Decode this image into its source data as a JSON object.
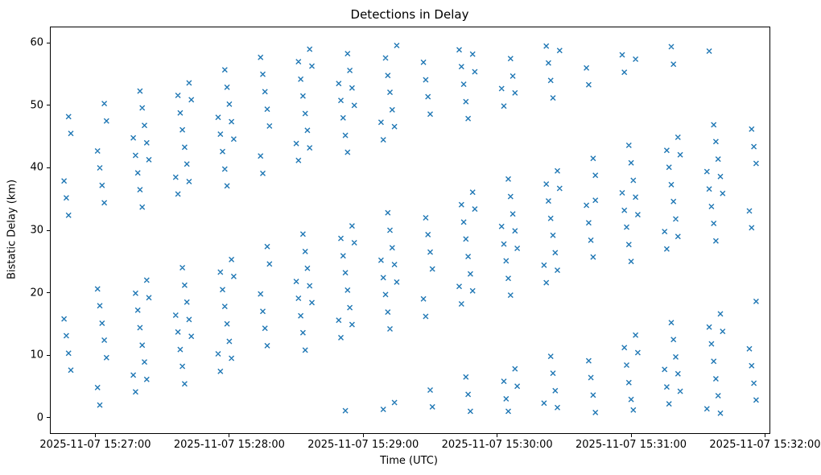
{
  "figure": {
    "background": "#ffffff"
  },
  "chart_data": {
    "type": "scatter",
    "title": "Detections in Delay",
    "xlabel": "Time (UTC)",
    "ylabel": "Bistatic Delay (km)",
    "marker": "x",
    "marker_color": "#1f77b4",
    "grid": false,
    "legend": "none",
    "x_axis": {
      "start": "2025-11-07 15:26:40",
      "end": "2025-11-07 15:32:02",
      "span_seconds": 322,
      "ticks": [
        {
          "label": "2025-11-07 15:27:00",
          "t": 20
        },
        {
          "label": "2025-11-07 15:28:00",
          "t": 80
        },
        {
          "label": "2025-11-07 15:29:00",
          "t": 140
        },
        {
          "label": "2025-11-07 15:30:00",
          "t": 200
        },
        {
          "label": "2025-11-07 15:31:00",
          "t": 260
        },
        {
          "label": "2025-11-07 15:32:00",
          "t": 320
        }
      ]
    },
    "y_axis": {
      "min": -2.5,
      "max": 62.5,
      "ticks": [
        0,
        10,
        20,
        30,
        40,
        50,
        60
      ]
    },
    "points_format": [
      "seconds_after_axis_start",
      "bistatic_delay_km"
    ],
    "points": [
      [
        79,
        37.1
      ],
      [
        152,
        14.2
      ],
      [
        225,
        51.2
      ],
      [
        298,
        28.3
      ],
      [
        60,
        5.4
      ],
      [
        133,
        42.5
      ],
      [
        206,
        19.6
      ],
      [
        279,
        56.6
      ],
      [
        41,
        33.7
      ],
      [
        114,
        10.8
      ],
      [
        187,
        47.9
      ],
      [
        260,
        25.0
      ],
      [
        22,
        2.0
      ],
      [
        95,
        39.1
      ],
      [
        168,
        16.2
      ],
      [
        241,
        53.3
      ],
      [
        314,
        30.4
      ],
      [
        76,
        7.4
      ],
      [
        149,
        44.5
      ],
      [
        222,
        21.6
      ],
      [
        295,
        58.7
      ],
      [
        57,
        35.8
      ],
      [
        130,
        12.8
      ],
      [
        203,
        49.9
      ],
      [
        276,
        27.0
      ],
      [
        38,
        4.1
      ],
      [
        111,
        41.2
      ],
      [
        184,
        18.2
      ],
      [
        257,
        55.3
      ],
      [
        8,
        32.4
      ],
      [
        81,
        9.5
      ],
      [
        154,
        46.6
      ],
      [
        227,
        23.6
      ],
      [
        300,
        0.7
      ],
      [
        62,
        37.8
      ],
      [
        135,
        14.9
      ],
      [
        208,
        52.0
      ],
      [
        281,
        29.0
      ],
      [
        43,
        6.1
      ],
      [
        116,
        43.2
      ],
      [
        189,
        20.3
      ],
      [
        262,
        57.4
      ],
      [
        24,
        34.4
      ],
      [
        97,
        11.5
      ],
      [
        170,
        48.6
      ],
      [
        243,
        25.7
      ],
      [
        316,
        2.8
      ],
      [
        78,
        39.8
      ],
      [
        151,
        16.9
      ],
      [
        224,
        54.0
      ],
      [
        297,
        31.1
      ],
      [
        59,
        8.2
      ],
      [
        132,
        45.2
      ],
      [
        205,
        22.3
      ],
      [
        278,
        59.4
      ],
      [
        40,
        36.5
      ],
      [
        113,
        13.6
      ],
      [
        186,
        50.6
      ],
      [
        259,
        27.7
      ],
      [
        21,
        4.8
      ],
      [
        94,
        41.9
      ],
      [
        167,
        19.0
      ],
      [
        240,
        56.0
      ],
      [
        313,
        33.1
      ],
      [
        75,
        10.2
      ],
      [
        148,
        47.3
      ],
      [
        221,
        24.4
      ],
      [
        294,
        1.4
      ],
      [
        56,
        38.5
      ],
      [
        129,
        15.6
      ],
      [
        202,
        52.7
      ],
      [
        275,
        29.8
      ],
      [
        37,
        6.8
      ],
      [
        110,
        43.9
      ],
      [
        183,
        21.0
      ],
      [
        256,
        58.1
      ],
      [
        7,
        35.2
      ],
      [
        80,
        12.2
      ],
      [
        153,
        49.3
      ],
      [
        226,
        26.4
      ],
      [
        299,
        3.5
      ],
      [
        61,
        40.6
      ],
      [
        134,
        17.6
      ],
      [
        207,
        54.7
      ],
      [
        280,
        31.8
      ],
      [
        42,
        8.9
      ],
      [
        115,
        46.0
      ],
      [
        188,
        23.0
      ],
      [
        261,
        1.2
      ],
      [
        23,
        37.2
      ],
      [
        96,
        14.3
      ],
      [
        169,
        51.4
      ],
      [
        242,
        28.4
      ],
      [
        315,
        5.5
      ],
      [
        77,
        42.6
      ],
      [
        150,
        19.7
      ],
      [
        223,
        56.8
      ],
      [
        296,
        33.8
      ],
      [
        58,
        10.9
      ],
      [
        131,
        48.0
      ],
      [
        204,
        25.1
      ],
      [
        277,
        2.2
      ],
      [
        39,
        39.2
      ],
      [
        112,
        16.3
      ],
      [
        185,
        53.4
      ],
      [
        258,
        30.5
      ],
      [
        9,
        7.6
      ],
      [
        82,
        44.6
      ],
      [
        155,
        21.7
      ],
      [
        228,
        58.8
      ],
      [
        301,
        35.9
      ],
      [
        63,
        13.0
      ],
      [
        136,
        50.0
      ],
      [
        209,
        27.1
      ],
      [
        282,
        4.2
      ],
      [
        44,
        41.3
      ],
      [
        117,
        18.4
      ],
      [
        190,
        55.4
      ],
      [
        263,
        32.5
      ],
      [
        25,
        9.6
      ],
      [
        98,
        46.7
      ],
      [
        171,
        23.8
      ],
      [
        244,
        0.8
      ],
      [
        6,
        37.9
      ],
      [
        79,
        15.0
      ],
      [
        152,
        52.1
      ],
      [
        225,
        29.2
      ],
      [
        298,
        6.2
      ],
      [
        60,
        43.3
      ],
      [
        133,
        20.4
      ],
      [
        206,
        57.5
      ],
      [
        279,
        34.6
      ],
      [
        41,
        11.6
      ],
      [
        114,
        48.7
      ],
      [
        187,
        25.8
      ],
      [
        260,
        2.9
      ],
      [
        22,
        40.0
      ],
      [
        95,
        17.0
      ],
      [
        168,
        54.1
      ],
      [
        241,
        31.2
      ],
      [
        314,
        8.3
      ],
      [
        76,
        45.4
      ],
      [
        149,
        22.4
      ],
      [
        222,
        59.5
      ],
      [
        295,
        36.6
      ],
      [
        57,
        13.7
      ],
      [
        130,
        50.8
      ],
      [
        203,
        27.8
      ],
      [
        276,
        4.9
      ],
      [
        38,
        42.0
      ],
      [
        111,
        19.1
      ],
      [
        184,
        56.2
      ],
      [
        257,
        33.2
      ],
      [
        8,
        10.3
      ],
      [
        81,
        47.4
      ],
      [
        154,
        24.5
      ],
      [
        227,
        1.6
      ],
      [
        300,
        38.6
      ],
      [
        62,
        15.7
      ],
      [
        135,
        52.8
      ],
      [
        208,
        29.9
      ],
      [
        281,
        7.0
      ],
      [
        43,
        44.0
      ],
      [
        116,
        21.1
      ],
      [
        189,
        58.2
      ],
      [
        262,
        35.3
      ],
      [
        24,
        12.4
      ],
      [
        97,
        49.4
      ],
      [
        170,
        26.5
      ],
      [
        243,
        3.6
      ],
      [
        316,
        40.7
      ],
      [
        78,
        17.8
      ],
      [
        151,
        54.8
      ],
      [
        224,
        31.9
      ],
      [
        297,
        9.0
      ],
      [
        59,
        46.1
      ],
      [
        132,
        23.2
      ],
      [
        205,
        1.0
      ],
      [
        278,
        37.3
      ],
      [
        40,
        14.4
      ],
      [
        113,
        51.5
      ],
      [
        186,
        28.6
      ],
      [
        259,
        5.6
      ],
      [
        21,
        42.7
      ],
      [
        94,
        19.8
      ],
      [
        167,
        56.9
      ],
      [
        240,
        34.0
      ],
      [
        313,
        11.0
      ],
      [
        75,
        48.1
      ],
      [
        148,
        25.2
      ],
      [
        221,
        2.3
      ],
      [
        294,
        39.4
      ],
      [
        56,
        16.4
      ],
      [
        129,
        53.5
      ],
      [
        202,
        30.6
      ],
      [
        275,
        7.7
      ],
      [
        37,
        44.8
      ],
      [
        110,
        21.8
      ],
      [
        183,
        58.9
      ],
      [
        256,
        36.0
      ],
      [
        7,
        13.1
      ],
      [
        80,
        50.2
      ],
      [
        153,
        27.2
      ],
      [
        226,
        4.3
      ],
      [
        299,
        41.4
      ],
      [
        61,
        18.5
      ],
      [
        134,
        55.6
      ],
      [
        207,
        32.6
      ],
      [
        280,
        9.7
      ],
      [
        42,
        46.8
      ],
      [
        115,
        23.9
      ],
      [
        188,
        1.0
      ],
      [
        261,
        38.0
      ],
      [
        23,
        15.1
      ],
      [
        96,
        52.2
      ],
      [
        169,
        29.3
      ],
      [
        242,
        6.4
      ],
      [
        315,
        43.4
      ],
      [
        77,
        20.5
      ],
      [
        150,
        57.6
      ],
      [
        223,
        34.7
      ],
      [
        296,
        11.8
      ],
      [
        58,
        48.8
      ],
      [
        131,
        25.9
      ],
      [
        204,
        3.0
      ],
      [
        277,
        40.1
      ],
      [
        39,
        17.2
      ],
      [
        112,
        54.2
      ],
      [
        185,
        31.3
      ],
      [
        258,
        8.4
      ],
      [
        9,
        45.5
      ],
      [
        82,
        22.6
      ],
      [
        155,
        59.6
      ],
      [
        228,
        36.7
      ],
      [
        301,
        13.8
      ],
      [
        63,
        50.9
      ],
      [
        136,
        28.0
      ],
      [
        209,
        5.0
      ],
      [
        282,
        42.1
      ],
      [
        44,
        19.2
      ],
      [
        117,
        56.3
      ],
      [
        190,
        33.4
      ],
      [
        263,
        10.4
      ],
      [
        25,
        47.5
      ],
      [
        98,
        24.6
      ],
      [
        171,
        1.7
      ],
      [
        244,
        38.8
      ],
      [
        6,
        15.8
      ],
      [
        79,
        52.9
      ],
      [
        152,
        30.0
      ],
      [
        225,
        7.1
      ],
      [
        298,
        44.2
      ],
      [
        60,
        21.2
      ],
      [
        133,
        58.3
      ],
      [
        206,
        35.4
      ],
      [
        279,
        12.5
      ],
      [
        41,
        49.6
      ],
      [
        114,
        26.6
      ],
      [
        187,
        3.7
      ],
      [
        260,
        40.8
      ],
      [
        22,
        17.9
      ],
      [
        95,
        55.0
      ],
      [
        168,
        32.0
      ],
      [
        241,
        9.1
      ],
      [
        314,
        46.2
      ],
      [
        76,
        23.3
      ],
      [
        149,
        1.3
      ],
      [
        222,
        37.4
      ],
      [
        295,
        14.5
      ],
      [
        57,
        51.6
      ],
      [
        130,
        28.7
      ],
      [
        203,
        5.8
      ],
      [
        276,
        42.8
      ],
      [
        38,
        19.9
      ],
      [
        111,
        57.0
      ],
      [
        184,
        34.1
      ],
      [
        257,
        11.2
      ],
      [
        8,
        48.2
      ],
      [
        81,
        25.3
      ],
      [
        154,
        2.4
      ],
      [
        227,
        39.5
      ],
      [
        300,
        16.6
      ],
      [
        62,
        53.6
      ],
      [
        135,
        30.7
      ],
      [
        208,
        7.8
      ],
      [
        281,
        44.9
      ],
      [
        43,
        22.0
      ],
      [
        116,
        59.0
      ],
      [
        189,
        36.1
      ],
      [
        262,
        13.2
      ],
      [
        24,
        50.3
      ],
      [
        97,
        27.4
      ],
      [
        170,
        4.4
      ],
      [
        243,
        41.5
      ],
      [
        316,
        18.6
      ],
      [
        78,
        55.7
      ],
      [
        151,
        32.8
      ],
      [
        224,
        9.8
      ],
      [
        297,
        46.9
      ],
      [
        59,
        24.0
      ],
      [
        132,
        1.1
      ],
      [
        205,
        38.2
      ],
      [
        278,
        15.2
      ],
      [
        40,
        52.3
      ],
      [
        113,
        29.4
      ],
      [
        186,
        6.5
      ],
      [
        259,
        43.6
      ],
      [
        21,
        20.6
      ],
      [
        94,
        57.7
      ],
      [
        244,
        34.8
      ]
    ]
  }
}
